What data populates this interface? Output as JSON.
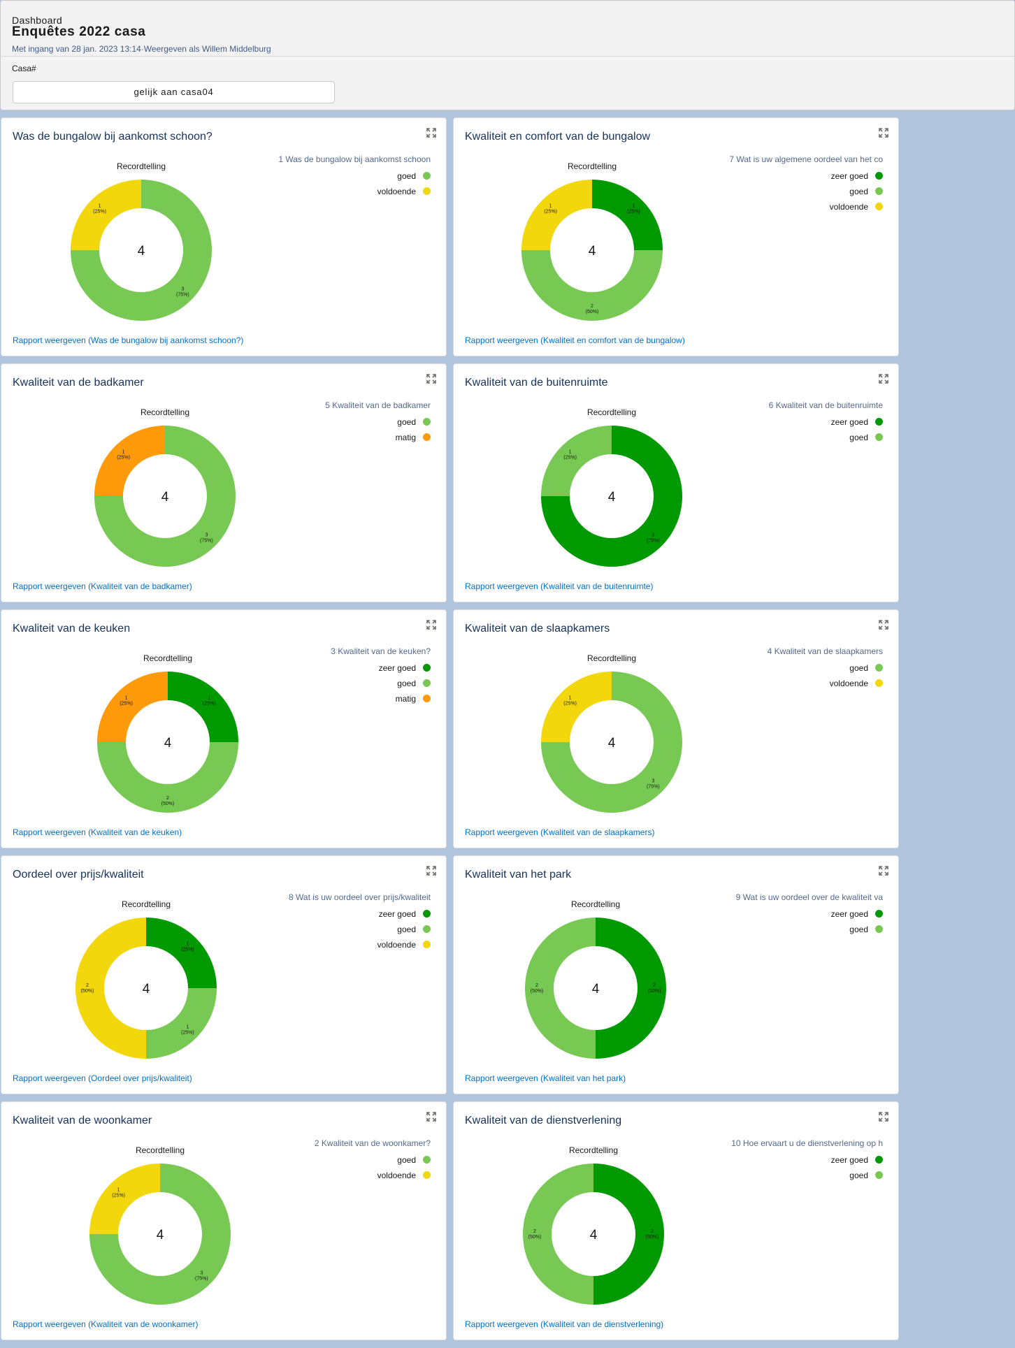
{
  "header": {
    "breadcrumb": "Dashboard",
    "title": "Enquêtes 2022 casa",
    "subtitle": "Met ingang van 28 jan. 2023 13:14·Weergeven als Willem Middelburg",
    "filter_label": "Casa#",
    "filter_value": "gelijk aan casa04"
  },
  "colors": {
    "zeer goed": "#009900",
    "goed": "#78c953",
    "voldoende": "#f2d70d",
    "matig": "#ff9a0a"
  },
  "cards": [
    {
      "title": "Was de bungalow bij aankomst schoon?",
      "measure_label": "Recordtelling",
      "legend_title": "1 Was de bungalow bij aankomst schoon",
      "link": "Rapport weergeven (Was de bungalow bij aankomst schoon?)",
      "chart_data": {
        "type": "donut",
        "total": 4,
        "slices": [
          {
            "label": "goed",
            "value": 3,
            "pct": "75%"
          },
          {
            "label": "voldoende",
            "value": 1,
            "pct": "25%"
          }
        ]
      }
    },
    {
      "title": "Kwaliteit en comfort van de bungalow",
      "measure_label": "Recordtelling",
      "legend_title": "7 Wat is uw  algemene oordeel van het co",
      "link": "Rapport weergeven (Kwaliteit en comfort van de bungalow)",
      "chart_data": {
        "type": "donut",
        "total": 4,
        "slices": [
          {
            "label": "zeer goed",
            "value": 1,
            "pct": "25%"
          },
          {
            "label": "goed",
            "value": 2,
            "pct": "50%"
          },
          {
            "label": "voldoende",
            "value": 1,
            "pct": "25%"
          }
        ]
      }
    },
    {
      "title": "Kwaliteit van de badkamer",
      "measure_label": "Recordtelling",
      "legend_title": "5 Kwaliteit van de badkamer",
      "link": "Rapport weergeven (Kwaliteit van de badkamer)",
      "chart_data": {
        "type": "donut",
        "total": 4,
        "slices": [
          {
            "label": "goed",
            "value": 3,
            "pct": "75%"
          },
          {
            "label": "matig",
            "value": 1,
            "pct": "25%"
          }
        ]
      }
    },
    {
      "title": "Kwaliteit van de buitenruimte",
      "measure_label": "Recordtelling",
      "legend_title": "6 Kwaliteit van de buitenruimte",
      "link": "Rapport weergeven (Kwaliteit van de buitenruimte)",
      "chart_data": {
        "type": "donut",
        "total": 4,
        "slices": [
          {
            "label": "zeer goed",
            "value": 3,
            "pct": "75%"
          },
          {
            "label": "goed",
            "value": 1,
            "pct": "25%"
          }
        ]
      }
    },
    {
      "title": "Kwaliteit van de keuken",
      "measure_label": "Recordtelling",
      "legend_title": "3 Kwaliteit van de keuken?",
      "link": "Rapport weergeven (Kwaliteit van de keuken)",
      "chart_data": {
        "type": "donut",
        "total": 4,
        "slices": [
          {
            "label": "zeer goed",
            "value": 1,
            "pct": "25%"
          },
          {
            "label": "goed",
            "value": 2,
            "pct": "50%"
          },
          {
            "label": "matig",
            "value": 1,
            "pct": "25%"
          }
        ]
      }
    },
    {
      "title": "Kwaliteit van de slaapkamers",
      "measure_label": "Recordtelling",
      "legend_title": "4 Kwaliteit van de slaapkamers",
      "link": "Rapport weergeven (Kwaliteit van de slaapkamers)",
      "chart_data": {
        "type": "donut",
        "total": 4,
        "slices": [
          {
            "label": "goed",
            "value": 3,
            "pct": "75%"
          },
          {
            "label": "voldoende",
            "value": 1,
            "pct": "25%"
          }
        ]
      }
    },
    {
      "title": "Oordeel over prijs/kwaliteit",
      "measure_label": "Recordtelling",
      "legend_title": "8 Wat is uw oordeel over prijs/kwaliteit",
      "link": "Rapport weergeven (Oordeel over prijs/kwaliteit)",
      "chart_data": {
        "type": "donut",
        "total": 4,
        "slices": [
          {
            "label": "zeer goed",
            "value": 1,
            "pct": "25%"
          },
          {
            "label": "goed",
            "value": 1,
            "pct": "25%"
          },
          {
            "label": "voldoende",
            "value": 2,
            "pct": "50%"
          }
        ]
      }
    },
    {
      "title": "Kwaliteit van het park",
      "measure_label": "Recordtelling",
      "legend_title": "9 Wat is uw oordeel over de kwaliteit va",
      "link": "Rapport weergeven (Kwaliteit van het park)",
      "chart_data": {
        "type": "donut",
        "total": 4,
        "slices": [
          {
            "label": "zeer goed",
            "value": 2,
            "pct": "50%"
          },
          {
            "label": "goed",
            "value": 2,
            "pct": "50%"
          }
        ]
      }
    },
    {
      "title": "Kwaliteit van de woonkamer",
      "measure_label": "Recordtelling",
      "legend_title": "2 Kwaliteit van de woonkamer?",
      "link": "Rapport weergeven (Kwaliteit van de woonkamer)",
      "chart_data": {
        "type": "donut",
        "total": 4,
        "slices": [
          {
            "label": "goed",
            "value": 3,
            "pct": "75%"
          },
          {
            "label": "voldoende",
            "value": 1,
            "pct": "25%"
          }
        ]
      }
    },
    {
      "title": "Kwaliteit van de dienstverlening",
      "measure_label": "Recordtelling",
      "legend_title": "10 Hoe ervaart u de dienstverlening op h",
      "link": "Rapport weergeven (Kwaliteit van de dienstverlening)",
      "chart_data": {
        "type": "donut",
        "total": 4,
        "slices": [
          {
            "label": "zeer goed",
            "value": 2,
            "pct": "50%"
          },
          {
            "label": "goed",
            "value": 2,
            "pct": "50%"
          }
        ]
      }
    }
  ]
}
